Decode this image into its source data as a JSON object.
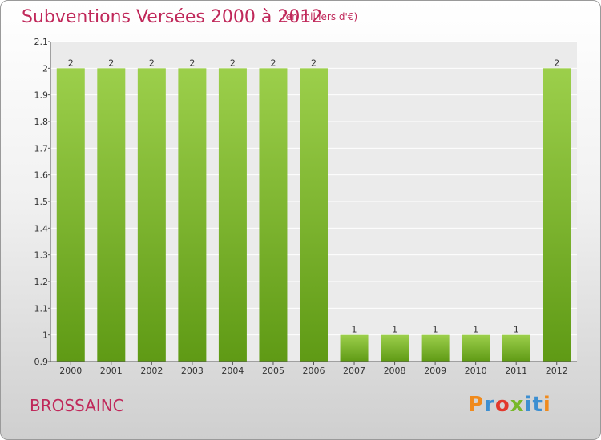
{
  "header": {
    "title": "Subventions Versées 2000 à 2012",
    "subtitle": "(en milliers d'€)"
  },
  "footer": {
    "town": "BROSSAINC",
    "logo_text": "Proxiti"
  },
  "colors": {
    "title": "#c0285a",
    "bar_light": "#9ccf4b",
    "bar_dark": "#5f9a15",
    "plot_bg": "#ebebeb",
    "logo_letters": [
      "#f08a1c",
      "#3d8fd1",
      "#e2382c",
      "#78b82a",
      "#3d8fd1",
      "#3d8fd1",
      "#f08a1c"
    ]
  },
  "chart_data": {
    "type": "bar",
    "title": "Subventions Versées 2000 à 2012",
    "subtitle": "(en milliers d'€)",
    "categories": [
      "2000",
      "2001",
      "2002",
      "2003",
      "2004",
      "2005",
      "2006",
      "2007",
      "2008",
      "2009",
      "2010",
      "2011",
      "2012"
    ],
    "values": [
      2,
      2,
      2,
      2,
      2,
      2,
      2,
      1,
      1,
      1,
      1,
      1,
      2
    ],
    "data_labels": [
      "2",
      "2",
      "2",
      "2",
      "2",
      "2",
      "2",
      "1",
      "1",
      "1",
      "1",
      "1",
      "2"
    ],
    "ylim": [
      0.9,
      2.1
    ],
    "yticks": [
      "0.9",
      "1",
      "1.1",
      "1.2",
      "1.3",
      "1.4",
      "1.5",
      "1.6",
      "1.7",
      "1.8",
      "1.9",
      "2",
      "2.1"
    ],
    "grid": "horizontal",
    "xlabel": "",
    "ylabel": ""
  }
}
